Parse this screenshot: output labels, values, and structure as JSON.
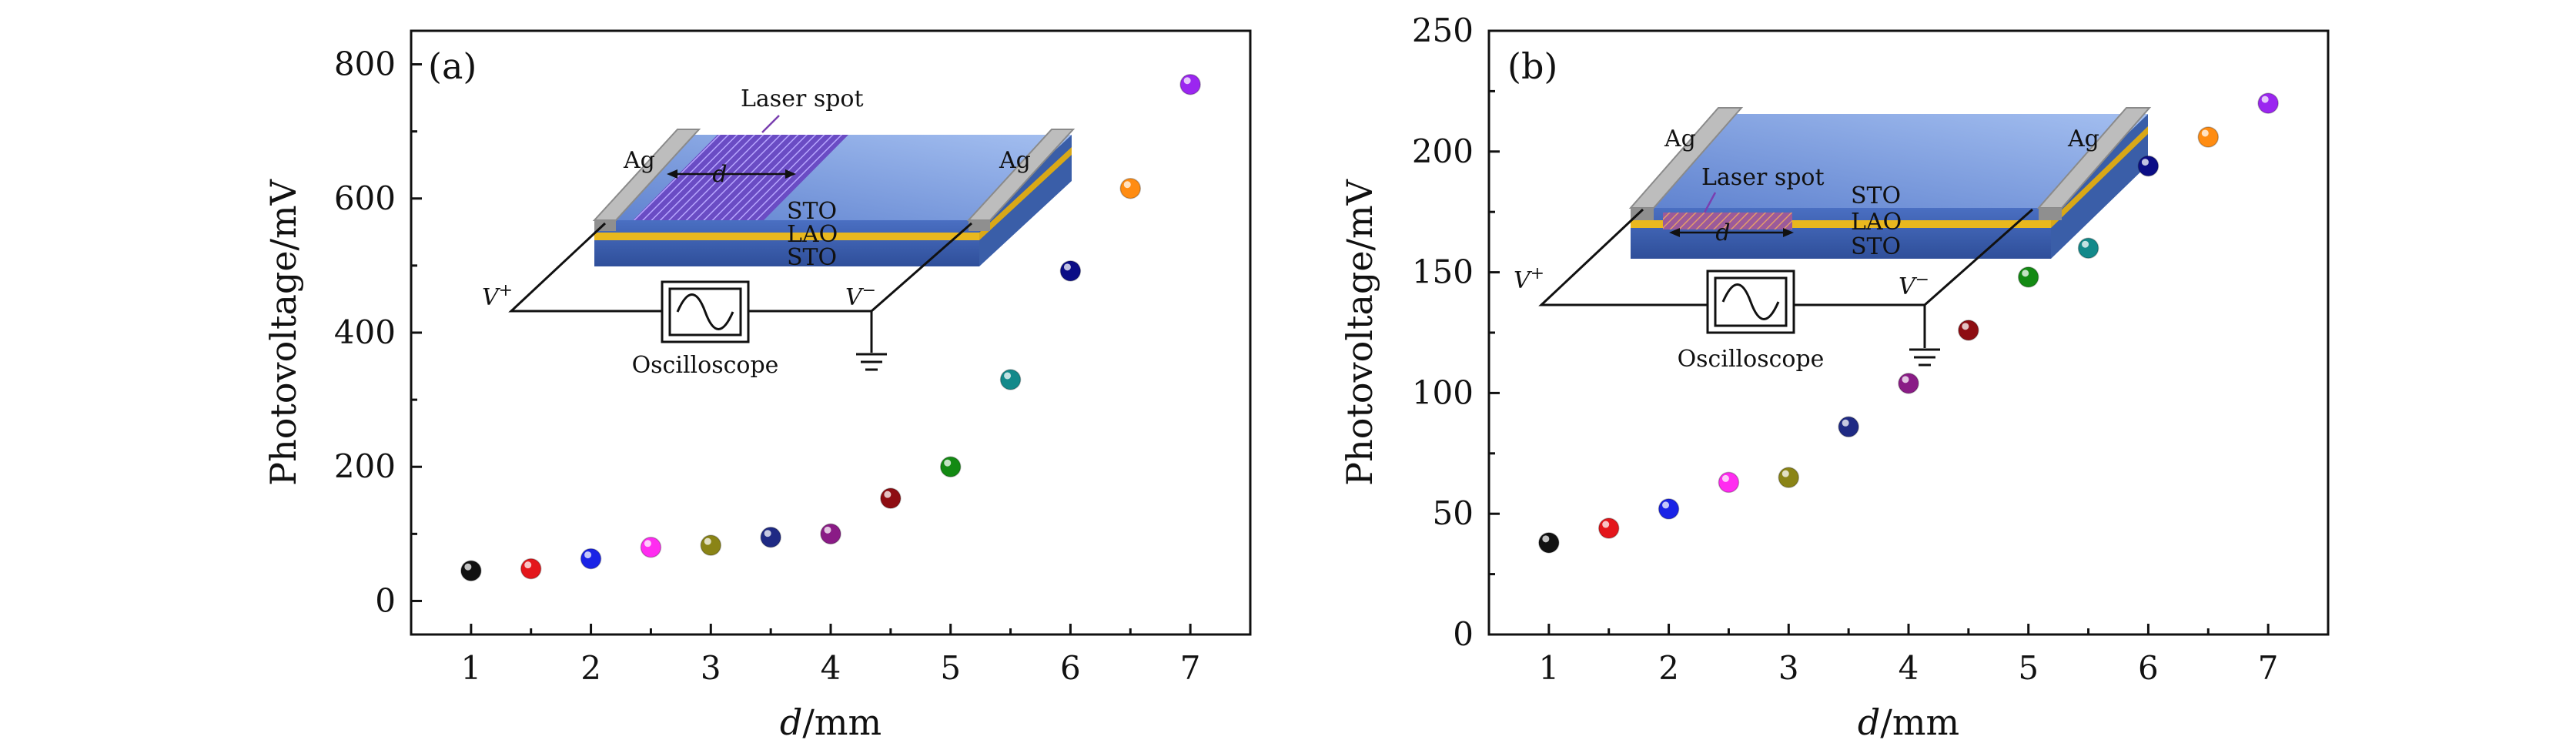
{
  "colors": {
    "points": [
      "#111111",
      "#e4161b",
      "#1a23e6",
      "#ff2cf0",
      "#8a8416",
      "#1f2a84",
      "#8a1b86",
      "#8e0d12",
      "#138a13",
      "#13898a",
      "#0b0d86",
      "#ff8c12",
      "#9b26f0"
    ],
    "film_top": "#6d8fd6",
    "film_side": "#3d63b4",
    "lao": "#e9b81e",
    "electrode": "#a6a6a6",
    "laser": "#7a5ad0"
  },
  "chart_data": [
    {
      "type": "scatter",
      "panel_label": "(a)",
      "xlabel_italic": "d",
      "xlabel_unit": "/mm",
      "ylabel": "Photovoltage/mV",
      "xlim": [
        0.5,
        7.5
      ],
      "ylim": [
        -50,
        850
      ],
      "x_ticks": [
        "1",
        "2",
        "3",
        "4",
        "5",
        "6",
        "7"
      ],
      "y_ticks": [
        "0",
        "200",
        "400",
        "600",
        "800"
      ],
      "x": [
        1,
        1.5,
        2,
        2.5,
        3,
        3.5,
        4,
        4.5,
        5,
        5.5,
        6,
        6.5,
        7
      ],
      "y": [
        45,
        48,
        63,
        80,
        83,
        95,
        100,
        153,
        200,
        330,
        492,
        615,
        770
      ],
      "inset": {
        "laser_label": "Laser spot",
        "d_label": "d",
        "left_electrode": "Ag",
        "right_electrode": "Ag",
        "layers": [
          "STO",
          "LAO",
          "STO"
        ],
        "v_plus": "V",
        "v_plus_sup": "+",
        "v_minus": "V",
        "v_minus_sup": "−",
        "instrument": "Oscilloscope"
      }
    },
    {
      "type": "scatter",
      "panel_label": "(b)",
      "xlabel_italic": "d",
      "xlabel_unit": "/mm",
      "ylabel": "Photovoltage/mV",
      "xlim": [
        0.5,
        7.5
      ],
      "ylim": [
        0,
        250
      ],
      "x_ticks": [
        "1",
        "2",
        "3",
        "4",
        "5",
        "6",
        "7"
      ],
      "y_ticks": [
        "0",
        "50",
        "100",
        "150",
        "200",
        "250"
      ],
      "x": [
        1,
        1.5,
        2,
        2.5,
        3,
        3.5,
        4,
        4.5,
        5,
        5.5,
        6,
        6.5,
        7
      ],
      "y": [
        38,
        44,
        52,
        63,
        65,
        86,
        104,
        126,
        148,
        160,
        194,
        206,
        220
      ],
      "inset": {
        "laser_label": "Laser spot",
        "d_label": "d",
        "left_electrode": "Ag",
        "right_electrode": "Ag",
        "layers": [
          "STO",
          "LAO",
          "STO"
        ],
        "v_plus": "V",
        "v_plus_sup": "+",
        "v_minus": "V",
        "v_minus_sup": "−",
        "instrument": "Oscilloscope"
      }
    }
  ]
}
